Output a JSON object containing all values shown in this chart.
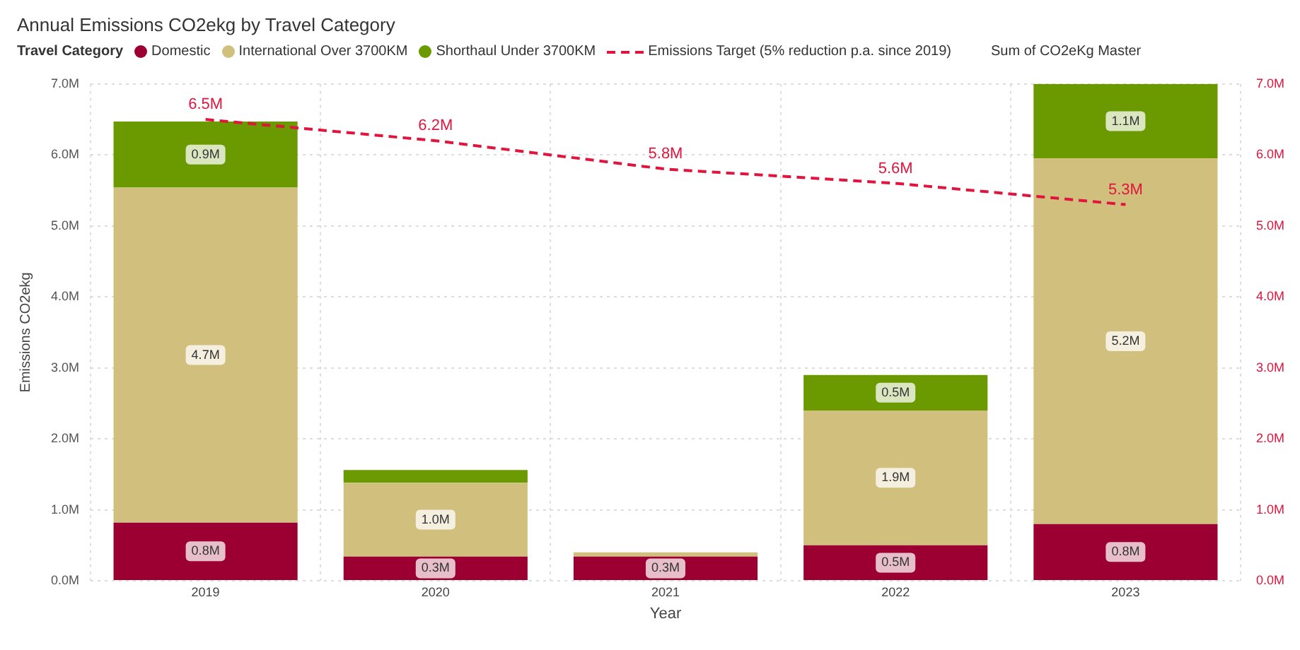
{
  "chart_data": {
    "type": "bar",
    "title": "Annual Emissions CO2ekg by Travel Category",
    "legend_title": "Travel Category",
    "xlabel": "Year",
    "ylabel": "Emissions CO2ekg",
    "categories": [
      "2019",
      "2020",
      "2021",
      "2022",
      "2023"
    ],
    "stacked": true,
    "legend": "top left",
    "grid": true,
    "ylim": [
      0,
      7
    ],
    "yticks": [
      {
        "value": 0,
        "label": "0.0M"
      },
      {
        "value": 1,
        "label": "1.0M"
      },
      {
        "value": 2,
        "label": "2.0M"
      },
      {
        "value": 3,
        "label": "3.0M"
      },
      {
        "value": 4,
        "label": "4.0M"
      },
      {
        "value": 5,
        "label": "5.0M"
      },
      {
        "value": 6,
        "label": "6.0M"
      },
      {
        "value": 7,
        "label": "7.0M"
      }
    ],
    "y2lim": [
      0,
      7
    ],
    "y2ticks": [
      {
        "value": 0,
        "label": "0.0M"
      },
      {
        "value": 1,
        "label": "1.0M"
      },
      {
        "value": 2,
        "label": "2.0M"
      },
      {
        "value": 3,
        "label": "3.0M"
      },
      {
        "value": 4,
        "label": "4.0M"
      },
      {
        "value": 5,
        "label": "5.0M"
      },
      {
        "value": 6,
        "label": "6.0M"
      },
      {
        "value": 7,
        "label": "7.0M"
      }
    ],
    "series": [
      {
        "name": "Domestic",
        "color": "#9c0033",
        "values": [
          0.82,
          0.34,
          0.34,
          0.5,
          0.8
        ],
        "value_labels": [
          "0.8M",
          "0.3M",
          "0.3M",
          "0.5M",
          "0.8M"
        ]
      },
      {
        "name": "International Over 3700KM",
        "color": "#d1bf7d",
        "values": [
          4.72,
          1.04,
          0.06,
          1.9,
          5.15
        ],
        "value_labels": [
          "4.7M",
          "1.0M",
          null,
          "1.9M",
          "5.2M"
        ]
      },
      {
        "name": "Shorthaul Under 3700KM",
        "color": "#6a9a00",
        "values": [
          0.93,
          0.18,
          null,
          0.5,
          1.05
        ],
        "value_labels": [
          "0.9M",
          null,
          null,
          "0.5M",
          "1.1M"
        ]
      },
      {
        "name": "Emissions Target (5% reduction p.a. since 2019)",
        "type": "line",
        "axis": "y2",
        "color": "#e0143c",
        "line_style": "dashed",
        "marker": "none",
        "values": [
          6.5,
          6.2,
          5.8,
          5.6,
          5.3
        ],
        "value_labels": [
          "6.5M",
          "6.2M",
          "5.8M",
          "5.6M",
          "5.3M"
        ]
      }
    ],
    "annotations": [
      "Sum of CO2eKg Master"
    ]
  }
}
